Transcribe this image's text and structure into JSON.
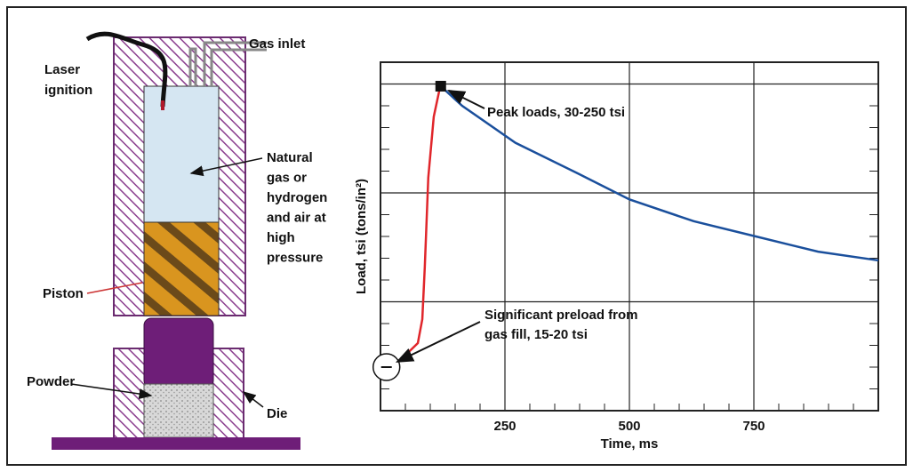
{
  "diagram": {
    "gas_inlet": "Gas inlet",
    "laser_ignition": [
      "Laser",
      "ignition"
    ],
    "chamber": [
      "Natural",
      "gas or",
      "hydrogen",
      "and air at",
      "high",
      "pressure"
    ],
    "piston": "Piston",
    "powder": "Powder",
    "die": "Die"
  },
  "chart_data": {
    "type": "line",
    "xlabel": "Time, ms",
    "ylabel": "Load, tsi (tons/in²)",
    "xlim": [
      0,
      1000
    ],
    "ylim": [
      0,
      16
    ],
    "xticks": [
      250,
      500,
      750
    ],
    "y_gridlines": [
      5,
      10,
      15
    ],
    "y_minor_ticks": [
      1,
      2,
      3,
      4,
      6,
      7,
      8,
      9,
      11,
      12,
      13,
      14,
      16
    ],
    "x_minor_ticks": [
      50,
      100,
      150,
      200,
      300,
      350,
      400,
      450,
      550,
      600,
      650,
      700,
      800,
      850,
      900,
      950
    ],
    "grid": true,
    "series": [
      {
        "color": "#e0262b",
        "x": [
          39,
          75,
          84,
          89,
          96,
          107,
          120
        ],
        "values": [
          2.3,
          3.1,
          4.2,
          6.6,
          10.7,
          13.5,
          14.9
        ]
      },
      {
        "color": "#1a4f9c",
        "x": [
          121,
          164,
          271,
          396,
          500,
          629,
          754,
          879,
          1000
        ],
        "values": [
          14.9,
          14.0,
          12.3,
          10.9,
          9.7,
          8.7,
          8.0,
          7.3,
          6.9
        ]
      }
    ],
    "peak_marker": {
      "x": 121,
      "y": 14.9
    },
    "preload_marker": {
      "x": 12,
      "y": 2.0
    },
    "annotations": {
      "peak": [
        "Peak loads, 30-250 tsi"
      ],
      "preload": [
        "Significant preload from",
        "gas fill, 15-20 tsi"
      ]
    }
  }
}
